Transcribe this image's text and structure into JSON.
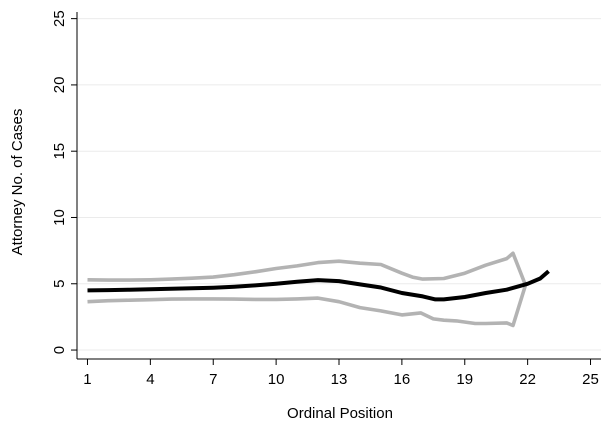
{
  "chart_data": {
    "type": "line",
    "title": "",
    "xlabel": "Ordinal Position",
    "ylabel": "Attorney No. of Cases",
    "xlim": [
      0.5,
      25.5
    ],
    "ylim": [
      -0.6,
      25.5
    ],
    "x_ticks": [
      1,
      4,
      7,
      10,
      13,
      16,
      19,
      22,
      25
    ],
    "y_ticks": [
      0,
      5,
      10,
      15,
      20,
      25
    ],
    "grid": "horizontal",
    "legend": "none",
    "colors": {
      "estimate": "#000000",
      "ci": "#b3b3b3",
      "grid": "#ebebeb"
    },
    "series": [
      {
        "role": "estimate",
        "x": [
          1,
          2,
          3,
          4,
          5,
          6,
          7,
          8,
          9,
          10,
          11,
          12,
          13,
          14,
          15,
          16,
          17,
          17.6,
          18,
          19,
          20,
          21,
          22,
          22.6,
          23
        ],
        "y": [
          4.5,
          4.52,
          4.55,
          4.58,
          4.62,
          4.66,
          4.7,
          4.78,
          4.88,
          5.0,
          5.15,
          5.28,
          5.2,
          4.95,
          4.72,
          4.3,
          4.05,
          3.82,
          3.82,
          4.0,
          4.3,
          4.55,
          5.0,
          5.4,
          5.95
        ]
      },
      {
        "role": "ci-upper",
        "x": [
          1,
          2,
          3,
          4,
          5,
          6,
          7,
          8,
          9,
          10,
          11,
          12,
          13,
          14,
          15,
          16,
          16.5,
          17,
          18,
          19,
          20,
          21,
          21.3,
          21.9
        ],
        "y": [
          5.3,
          5.28,
          5.28,
          5.3,
          5.35,
          5.42,
          5.5,
          5.68,
          5.9,
          6.15,
          6.35,
          6.6,
          6.7,
          6.55,
          6.45,
          5.8,
          5.5,
          5.35,
          5.4,
          5.8,
          6.4,
          6.9,
          7.3,
          4.9
        ]
      },
      {
        "role": "ci-lower",
        "x": [
          1,
          2,
          3,
          4,
          5,
          6,
          7,
          8,
          9,
          10,
          11,
          12,
          13,
          14,
          15,
          16,
          16.9,
          17.5,
          18,
          18.6,
          19.5,
          20,
          21,
          21.3,
          21.9
        ],
        "y": [
          3.65,
          3.72,
          3.76,
          3.8,
          3.84,
          3.86,
          3.86,
          3.84,
          3.82,
          3.82,
          3.86,
          3.92,
          3.65,
          3.2,
          2.95,
          2.65,
          2.8,
          2.35,
          2.25,
          2.2,
          2.0,
          2.0,
          2.05,
          1.85,
          4.9
        ]
      }
    ]
  }
}
